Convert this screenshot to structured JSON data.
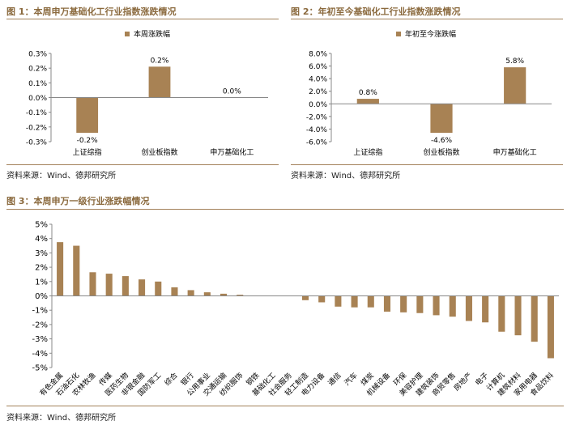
{
  "colors": {
    "bar": "#a88254",
    "title": "#8b6a3e",
    "rule": "#a3815a",
    "axis": "#888888"
  },
  "sources": {
    "source": "资料来源：Wind、德邦研究所"
  },
  "chart_data": [
    {
      "type": "bar",
      "title": "图 1：本周申万基础化工行业指数涨跌情况",
      "legend": "本周涨跌幅",
      "legend_position": "top",
      "categories": [
        "上证综指",
        "创业板指数",
        "申万基础化工"
      ],
      "values": [
        -0.24,
        0.21,
        0.0
      ],
      "data_labels": [
        "-0.2%",
        "0.2%",
        "0.0%"
      ],
      "yticks": [
        "0.3%",
        "0.2%",
        "0.1%",
        "0.0%",
        "-0.1%",
        "-0.2%",
        "-0.3%"
      ],
      "ylim": [
        -0.3,
        0.3
      ],
      "grid": false
    },
    {
      "type": "bar",
      "title": "图 2：年初至今基础化工行业指数涨跌情况",
      "legend": "年初至今涨跌幅",
      "legend_position": "top",
      "categories": [
        "上证综指",
        "创业板指数",
        "申万基础化工"
      ],
      "values": [
        0.8,
        -4.6,
        5.8
      ],
      "data_labels": [
        "0.8%",
        "-4.6%",
        "5.8%"
      ],
      "yticks": [
        "8.0%",
        "6.0%",
        "4.0%",
        "2.0%",
        "0.0%",
        "-2.0%",
        "-4.0%",
        "-6.0%"
      ],
      "ylim": [
        -6.0,
        8.0
      ],
      "grid": false
    },
    {
      "type": "bar",
      "title": "图 3：本周申万一级行业涨跌幅情况",
      "categories": [
        "有色金属",
        "石油石化",
        "农林牧渔",
        "传媒",
        "医药生物",
        "非银金融",
        "国防军工",
        "综合",
        "银行",
        "公用事业",
        "交通运输",
        "纺织服饰",
        "钢铁",
        "基础化工",
        "社会服务",
        "轻工制造",
        "电力设备",
        "通信",
        "汽车",
        "煤炭",
        "机械设备",
        "环保",
        "美容护理",
        "建筑装饰",
        "商贸零售",
        "房地产",
        "电子",
        "计算机",
        "建筑材料",
        "家用电器",
        "食品饮料"
      ],
      "values": [
        3.75,
        3.5,
        1.65,
        1.55,
        1.38,
        1.15,
        1.0,
        0.6,
        0.4,
        0.25,
        0.15,
        0.08,
        0.0,
        0.0,
        -0.02,
        -0.3,
        -0.45,
        -0.75,
        -0.8,
        -0.8,
        -1.1,
        -1.15,
        -1.2,
        -1.35,
        -1.45,
        -1.75,
        -1.85,
        -2.5,
        -2.75,
        -3.2,
        -4.35
      ],
      "yticks": [
        "5%",
        "4%",
        "3%",
        "2%",
        "1%",
        "0%",
        "-1%",
        "-2%",
        "-3%",
        "-4%",
        "-5%"
      ],
      "ylim": [
        -5,
        5
      ],
      "grid": false
    }
  ]
}
